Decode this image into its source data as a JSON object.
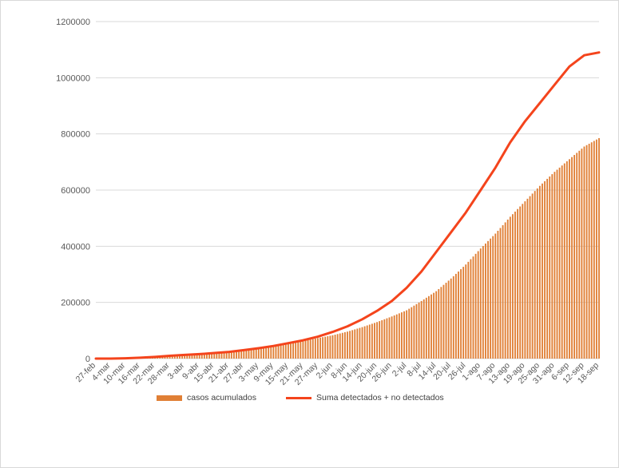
{
  "chart_data": {
    "type": "bar+line",
    "title": "",
    "xlabel": "",
    "ylabel": "",
    "ylim": [
      0,
      1200000
    ],
    "yticks": [
      0,
      200000,
      400000,
      600000,
      800000,
      1000000,
      1200000
    ],
    "grid": true,
    "legend_position": "bottom",
    "x_tick_labels": [
      "27-feb",
      "4-mar",
      "10-mar",
      "16-mar",
      "22-mar",
      "28-mar",
      "3-abr",
      "9-abr",
      "15-abr",
      "21-abr",
      "27-abr",
      "3-may",
      "9-may",
      "15-may",
      "21-may",
      "27-may",
      "2-jun",
      "8-jun",
      "14-jun",
      "20-jun",
      "26-jun",
      "2-jul",
      "8-jul",
      "14-jul",
      "20-jul",
      "26-jul",
      "1-ago",
      "7-ago",
      "13-ago",
      "19-ago",
      "25-ago",
      "31-ago",
      "6-sep",
      "12-sep",
      "18-sep"
    ],
    "series": [
      {
        "name": "casos acumulados",
        "kind": "bar",
        "color": "#e07f35",
        "values": [
          0,
          0,
          1000,
          3000,
          6000,
          10000,
          14000,
          17000,
          21000,
          25000,
          30000,
          36000,
          43000,
          53000,
          62000,
          73000,
          83000,
          96000,
          112000,
          130000,
          150000,
          172000,
          205000,
          240000,
          285000,
          335000,
          392000,
          445000,
          505000,
          560000,
          615000,
          665000,
          710000,
          755000,
          785000
        ]
      },
      {
        "name": "Suma detectados + no detectados",
        "kind": "line",
        "color": "#f4441c",
        "values": [
          0,
          0,
          1000,
          3000,
          6000,
          10000,
          13000,
          16000,
          20000,
          24000,
          30000,
          37000,
          45000,
          55000,
          65000,
          78000,
          95000,
          115000,
          140000,
          170000,
          205000,
          252000,
          310000,
          380000,
          450000,
          520000,
          600000,
          680000,
          770000,
          845000,
          910000,
          975000,
          1040000,
          1080000,
          1090000
        ]
      }
    ]
  }
}
